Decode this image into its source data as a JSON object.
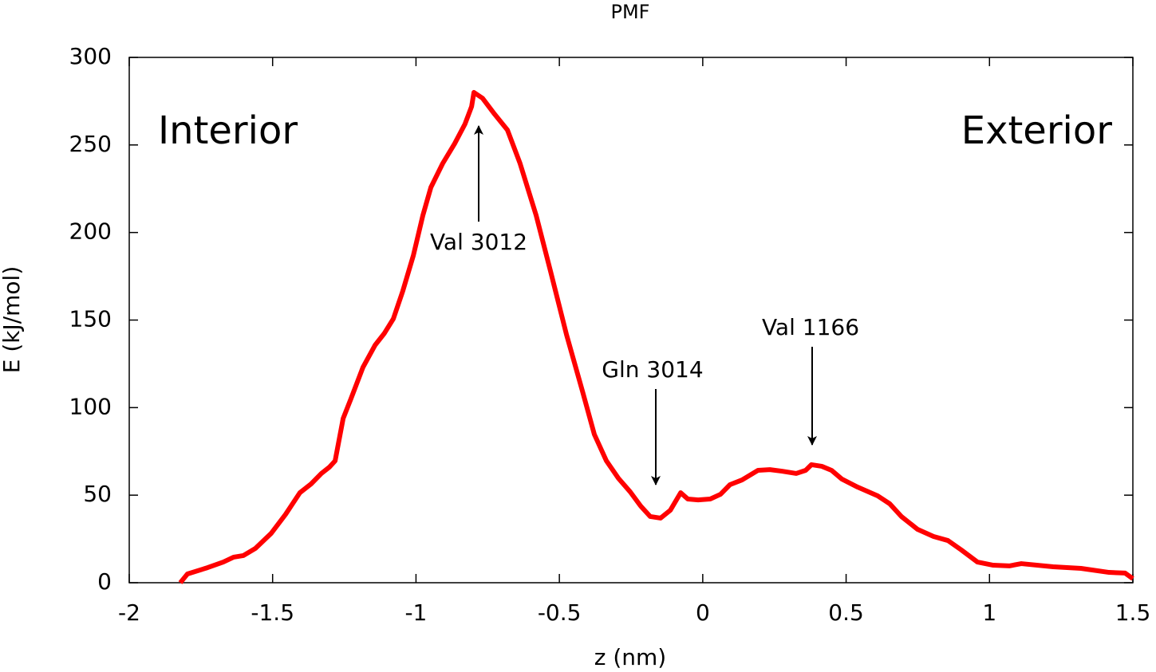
{
  "chart_data": {
    "type": "line",
    "title": "PMF",
    "x_label": "z (nm)",
    "y_label": "E (kJ/mol)",
    "annotations": [
      "Interior",
      "Exterior",
      "Val 3012",
      "Gln 3014",
      "Val 1166"
    ],
    "x": [
      -1.822,
      -1.797,
      -1.727,
      -1.672,
      -1.636,
      -1.602,
      -1.56,
      -1.505,
      -1.455,
      -1.405,
      -1.366,
      -1.33,
      -1.302,
      -1.282,
      -1.254,
      -1.227,
      -1.185,
      -1.143,
      -1.11,
      -1.079,
      -1.046,
      -1.009,
      -0.976,
      -0.948,
      -0.907,
      -0.865,
      -0.829,
      -0.806,
      -0.798,
      -0.768,
      -0.726,
      -0.681,
      -0.637,
      -0.581,
      -0.531,
      -0.475,
      -0.42,
      -0.378,
      -0.336,
      -0.294,
      -0.253,
      -0.216,
      -0.183,
      -0.147,
      -0.113,
      -0.077,
      -0.052,
      -0.016,
      0.026,
      0.062,
      0.095,
      0.137,
      0.193,
      0.234,
      0.276,
      0.326,
      0.359,
      0.379,
      0.415,
      0.449,
      0.485,
      0.54,
      0.61,
      0.652,
      0.693,
      0.749,
      0.805,
      0.855,
      0.902,
      0.958,
      1.013,
      1.069,
      1.111,
      1.222,
      1.319,
      1.417,
      1.473,
      1.5
    ],
    "series": [
      {
        "color": "#ff0000",
        "values": [
          0,
          5,
          8.6,
          11.8,
          14.6,
          15.5,
          19.6,
          28.2,
          39,
          51.4,
          56.4,
          62.4,
          66,
          69.6,
          93.8,
          105,
          123,
          135.6,
          142.5,
          150.7,
          166.6,
          187,
          209.8,
          225.8,
          239.4,
          250.8,
          262,
          272,
          280,
          276.7,
          267.6,
          258.5,
          239.4,
          209.8,
          178,
          141.6,
          109.7,
          84.7,
          69.6,
          59.6,
          51.9,
          43.7,
          37.8,
          36.9,
          41.4,
          51.4,
          47.8,
          47.3,
          47.8,
          50.5,
          56,
          58.7,
          64.2,
          64.6,
          63.7,
          62.4,
          64.2,
          67.4,
          66.5,
          64.2,
          59.2,
          54.6,
          49.6,
          45.1,
          37.8,
          30.5,
          26.4,
          24.1,
          18.7,
          11.8,
          10,
          9.6,
          10.9,
          9.1,
          8.2,
          5.9,
          5.5,
          2.3
        ]
      }
    ],
    "xlim": [
      -2,
      1.5
    ],
    "xticks": [
      -2,
      -1.5,
      -1,
      -0.5,
      0,
      0.5,
      1,
      1.5
    ],
    "ylim": [
      0,
      300
    ],
    "yticks": [
      0,
      50,
      100,
      150,
      200,
      250,
      300
    ],
    "grid": false
  }
}
